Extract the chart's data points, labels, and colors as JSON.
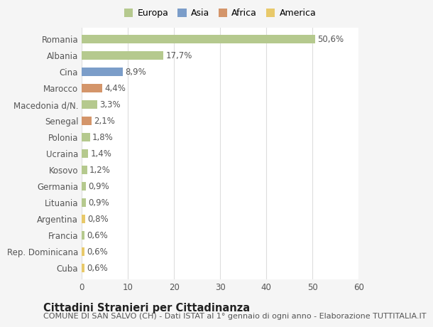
{
  "categories": [
    "Romania",
    "Albania",
    "Cina",
    "Marocco",
    "Macedonia d/N.",
    "Senegal",
    "Polonia",
    "Ucraina",
    "Kosovo",
    "Germania",
    "Lituania",
    "Argentina",
    "Francia",
    "Rep. Dominicana",
    "Cuba"
  ],
  "values": [
    50.6,
    17.7,
    8.9,
    4.4,
    3.3,
    2.1,
    1.8,
    1.4,
    1.2,
    0.9,
    0.9,
    0.8,
    0.6,
    0.6,
    0.6
  ],
  "labels": [
    "50,6%",
    "17,7%",
    "8,9%",
    "4,4%",
    "3,3%",
    "2,1%",
    "1,8%",
    "1,4%",
    "1,2%",
    "0,9%",
    "0,9%",
    "0,8%",
    "0,6%",
    "0,6%",
    "0,6%"
  ],
  "colors": [
    "#b5c98e",
    "#b5c98e",
    "#7b9dc9",
    "#d4956a",
    "#b5c98e",
    "#d4956a",
    "#b5c98e",
    "#b5c98e",
    "#b5c98e",
    "#b5c98e",
    "#b5c98e",
    "#e8c96a",
    "#b5c98e",
    "#e8c96a",
    "#e8c96a"
  ],
  "legend_labels": [
    "Europa",
    "Asia",
    "Africa",
    "America"
  ],
  "legend_colors": [
    "#b5c98e",
    "#7b9dc9",
    "#d4956a",
    "#e8c96a"
  ],
  "title": "Cittadini Stranieri per Cittadinanza",
  "subtitle": "COMUNE DI SAN SALVO (CH) - Dati ISTAT al 1° gennaio di ogni anno - Elaborazione TUTTITALIA.IT",
  "xlim": [
    0,
    60
  ],
  "xticks": [
    0,
    10,
    20,
    30,
    40,
    50,
    60
  ],
  "background_color": "#f5f5f5",
  "bar_background": "#ffffff",
  "grid_color": "#dddddd",
  "text_color": "#555555",
  "title_fontsize": 10.5,
  "subtitle_fontsize": 8,
  "tick_fontsize": 8.5,
  "label_fontsize": 8.5,
  "bar_height": 0.55
}
